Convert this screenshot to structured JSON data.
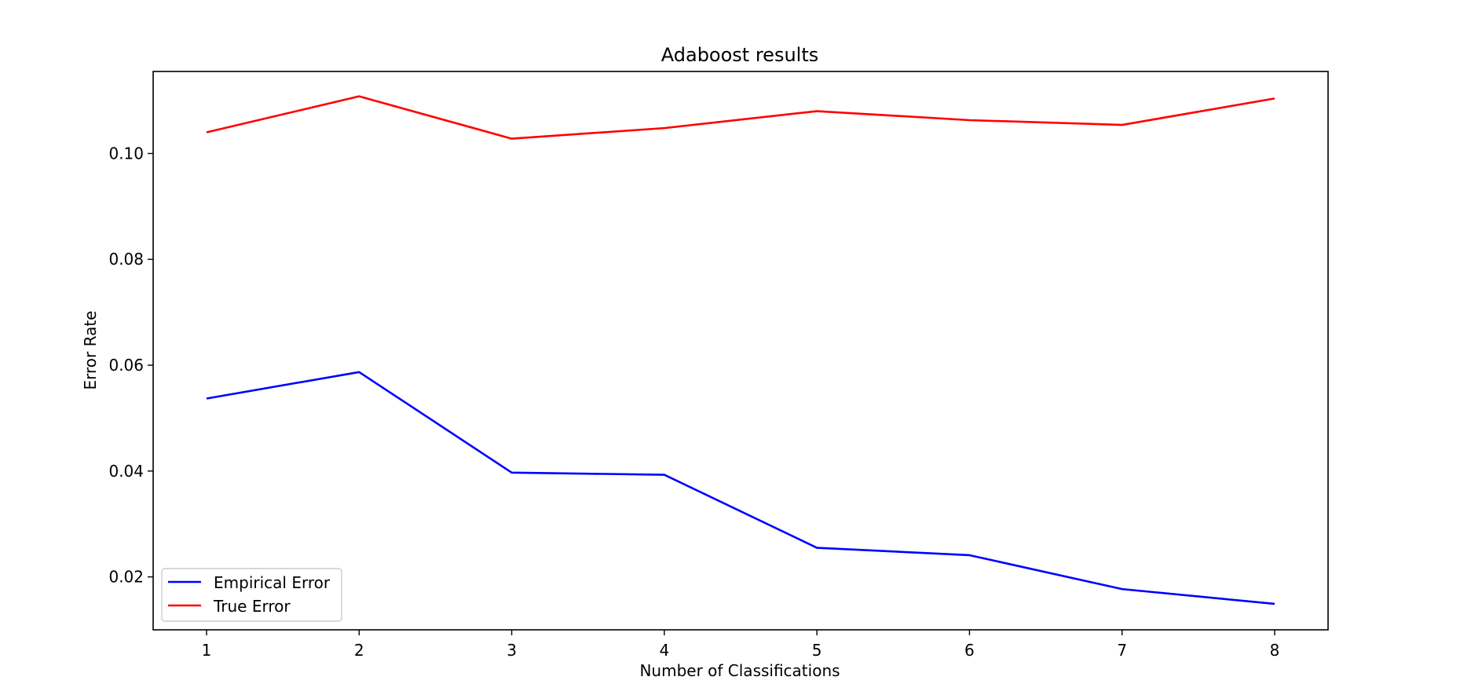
{
  "chart_data": {
    "type": "line",
    "title": "Adaboost results",
    "xlabel": "Number of Classifications",
    "ylabel": "Error Rate",
    "x": [
      1,
      2,
      3,
      4,
      5,
      6,
      7,
      8
    ],
    "xticks": [
      "1",
      "2",
      "3",
      "4",
      "5",
      "6",
      "7",
      "8"
    ],
    "yticks": [
      {
        "value": 0.02,
        "label": "0.02"
      },
      {
        "value": 0.04,
        "label": "0.04"
      },
      {
        "value": 0.06,
        "label": "0.06"
      },
      {
        "value": 0.08,
        "label": "0.08"
      },
      {
        "value": 0.1,
        "label": "0.10"
      }
    ],
    "xlim": [
      0.65,
      8.35
    ],
    "ylim": [
      0.01,
      0.1155
    ],
    "grid": false,
    "legend_position": "lower-left",
    "series": [
      {
        "name": "Empirical Error",
        "color": "#0000ff",
        "values": [
          0.0537,
          0.0587,
          0.0397,
          0.0393,
          0.0255,
          0.0241,
          0.0177,
          0.0149
        ]
      },
      {
        "name": "True Error",
        "color": "#ff0000",
        "values": [
          0.104,
          0.1108,
          0.1028,
          0.1048,
          0.108,
          0.1063,
          0.1054,
          0.1104
        ]
      }
    ]
  }
}
